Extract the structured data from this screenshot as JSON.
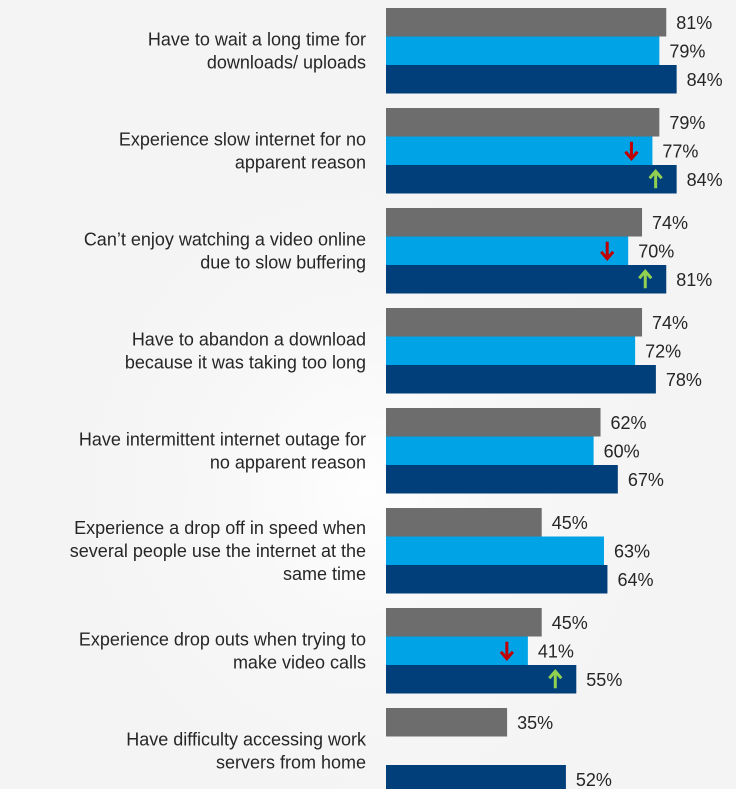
{
  "colors": {
    "series": [
      "#6d6d6d",
      "#00a3e6",
      "#003f7a"
    ],
    "arrow_down": "#c00000",
    "arrow_up": "#92d050"
  },
  "chart_data": {
    "type": "bar",
    "orientation": "horizontal",
    "categories": [
      [
        "Have to wait a long time for",
        "downloads/ uploads"
      ],
      [
        "Experience slow internet for no",
        "apparent reason"
      ],
      [
        "Can’t enjoy watching a  video online",
        "due to slow buffering"
      ],
      [
        "Have to abandon a download",
        "because it was taking too long"
      ],
      [
        "Have intermittent internet outage for",
        "no apparent reason"
      ],
      [
        "Experience a drop off in speed when",
        "several people use the internet at the",
        "same time"
      ],
      [
        "Experience drop outs when trying to",
        "make video calls"
      ],
      [
        "Have difficulty accessing work",
        "servers from home"
      ]
    ],
    "series": [
      {
        "values": [
          81,
          79,
          74,
          74,
          62,
          45,
          45,
          35
        ]
      },
      {
        "values": [
          79,
          77,
          70,
          72,
          60,
          63,
          41,
          null
        ]
      },
      {
        "values": [
          84,
          84,
          81,
          78,
          67,
          64,
          55,
          52
        ]
      }
    ],
    "value_labels": [
      [
        "81%",
        "79%",
        "74%",
        "74%",
        "62%",
        "45%",
        "45%",
        "35%"
      ],
      [
        "79%",
        "77%",
        "70%",
        "72%",
        "60%",
        "63%",
        "41%",
        ""
      ],
      [
        "84%",
        "84%",
        "81%",
        "78%",
        "67%",
        "64%",
        "55%",
        "52%"
      ]
    ],
    "arrows": [
      {
        "category": 1,
        "series": 1,
        "direction": "down"
      },
      {
        "category": 1,
        "series": 2,
        "direction": "up"
      },
      {
        "category": 2,
        "series": 1,
        "direction": "down"
      },
      {
        "category": 2,
        "series": 2,
        "direction": "up"
      },
      {
        "category": 6,
        "series": 1,
        "direction": "down"
      },
      {
        "category": 6,
        "series": 2,
        "direction": "up"
      }
    ],
    "xlim": [
      0,
      100
    ],
    "grid": false,
    "legend": "none"
  }
}
